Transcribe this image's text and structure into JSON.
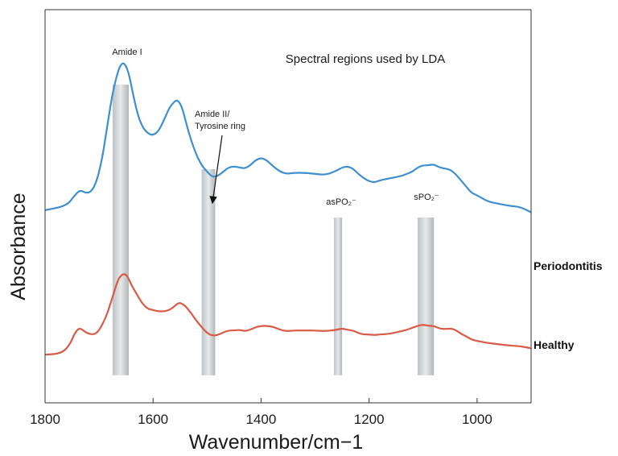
{
  "chart_data": {
    "type": "line",
    "xlabel": "Wavenumber/cm−1",
    "ylabel": "Absorbance",
    "title": "Spectral regions used by LDA",
    "xlim": [
      1800,
      900
    ],
    "x_reversed": true,
    "ylim": [
      0,
      1
    ],
    "x_ticks": [
      1800,
      1600,
      1400,
      1200,
      1000
    ],
    "y_ticks_shown": false,
    "grid": false,
    "series": [
      {
        "name": "Periodontitis",
        "color": "#3d8fd1",
        "x": [
          1800,
          1760,
          1745,
          1735,
          1725,
          1715,
          1705,
          1695,
          1685,
          1675,
          1665,
          1660,
          1655,
          1650,
          1645,
          1640,
          1630,
          1620,
          1610,
          1600,
          1590,
          1580,
          1570,
          1560,
          1555,
          1550,
          1545,
          1540,
          1530,
          1520,
          1510,
          1500,
          1490,
          1480,
          1470,
          1460,
          1450,
          1440,
          1430,
          1420,
          1410,
          1400,
          1390,
          1380,
          1370,
          1360,
          1350,
          1340,
          1320,
          1300,
          1280,
          1260,
          1250,
          1240,
          1230,
          1220,
          1210,
          1200,
          1190,
          1180,
          1160,
          1140,
          1130,
          1120,
          1110,
          1100,
          1090,
          1080,
          1070,
          1060,
          1050,
          1040,
          1030,
          1020,
          1010,
          1000,
          980,
          960,
          940,
          920,
          900
        ],
        "y": [
          0.31,
          0.33,
          0.38,
          0.405,
          0.39,
          0.395,
          0.44,
          0.54,
          0.7,
          0.86,
          0.96,
          0.99,
          1.0,
          0.985,
          0.95,
          0.89,
          0.77,
          0.7,
          0.67,
          0.66,
          0.68,
          0.73,
          0.79,
          0.82,
          0.825,
          0.81,
          0.78,
          0.73,
          0.64,
          0.57,
          0.52,
          0.49,
          0.465,
          0.47,
          0.49,
          0.51,
          0.515,
          0.51,
          0.505,
          0.52,
          0.545,
          0.555,
          0.545,
          0.52,
          0.5,
          0.485,
          0.48,
          0.485,
          0.485,
          0.48,
          0.475,
          0.495,
          0.51,
          0.515,
          0.505,
          0.48,
          0.46,
          0.445,
          0.44,
          0.45,
          0.46,
          0.47,
          0.48,
          0.49,
          0.51,
          0.52,
          0.52,
          0.525,
          0.51,
          0.505,
          0.5,
          0.48,
          0.45,
          0.42,
          0.39,
          0.38,
          0.35,
          0.34,
          0.33,
          0.325,
          0.3
        ]
      },
      {
        "name": "Healthy",
        "color": "#d95a45",
        "x": [
          1800,
          1770,
          1755,
          1745,
          1738,
          1732,
          1725,
          1715,
          1705,
          1695,
          1685,
          1675,
          1665,
          1660,
          1655,
          1650,
          1645,
          1640,
          1630,
          1620,
          1610,
          1600,
          1590,
          1580,
          1570,
          1560,
          1555,
          1550,
          1545,
          1540,
          1530,
          1520,
          1510,
          1500,
          1490,
          1480,
          1470,
          1460,
          1450,
          1440,
          1430,
          1420,
          1410,
          1400,
          1390,
          1380,
          1370,
          1360,
          1350,
          1340,
          1320,
          1300,
          1280,
          1260,
          1250,
          1240,
          1230,
          1220,
          1210,
          1200,
          1190,
          1180,
          1160,
          1140,
          1130,
          1120,
          1110,
          1100,
          1090,
          1080,
          1070,
          1060,
          1050,
          1040,
          1030,
          1020,
          1010,
          1000,
          980,
          960,
          940,
          920,
          900
        ],
        "y": [
          0.09,
          0.1,
          0.16,
          0.255,
          0.29,
          0.285,
          0.26,
          0.245,
          0.25,
          0.31,
          0.4,
          0.53,
          0.66,
          0.69,
          0.705,
          0.7,
          0.67,
          0.62,
          0.55,
          0.48,
          0.44,
          0.43,
          0.42,
          0.42,
          0.43,
          0.46,
          0.48,
          0.485,
          0.475,
          0.46,
          0.41,
          0.35,
          0.3,
          0.255,
          0.235,
          0.24,
          0.26,
          0.275,
          0.275,
          0.28,
          0.27,
          0.28,
          0.3,
          0.31,
          0.31,
          0.305,
          0.29,
          0.275,
          0.27,
          0.275,
          0.275,
          0.275,
          0.27,
          0.28,
          0.29,
          0.28,
          0.275,
          0.255,
          0.245,
          0.245,
          0.24,
          0.245,
          0.25,
          0.27,
          0.28,
          0.295,
          0.31,
          0.32,
          0.31,
          0.31,
          0.29,
          0.285,
          0.29,
          0.28,
          0.25,
          0.23,
          0.205,
          0.195,
          0.18,
          0.17,
          0.16,
          0.155,
          0.14
        ]
      }
    ],
    "bands": [
      {
        "x_from": 1675,
        "x_to": 1645
      },
      {
        "x_from": 1510,
        "x_to": 1485
      },
      {
        "x_from": 1265,
        "x_to": 1250
      },
      {
        "x_from": 1110,
        "x_to": 1080
      }
    ],
    "band_ymin": 0.07,
    "annotations": [
      {
        "text": "Amide I",
        "at_x": 1652
      },
      {
        "text": "Amide II/",
        "at_x": 1500
      },
      {
        "text": "Tyrosine ring",
        "at_x": 1500
      },
      {
        "text": "asPO₂⁻",
        "at_x": 1245
      },
      {
        "text": "sPO₂⁻",
        "at_x": 1095
      }
    ],
    "arrow": {
      "label_x": 1500,
      "to_x": 1500
    }
  }
}
